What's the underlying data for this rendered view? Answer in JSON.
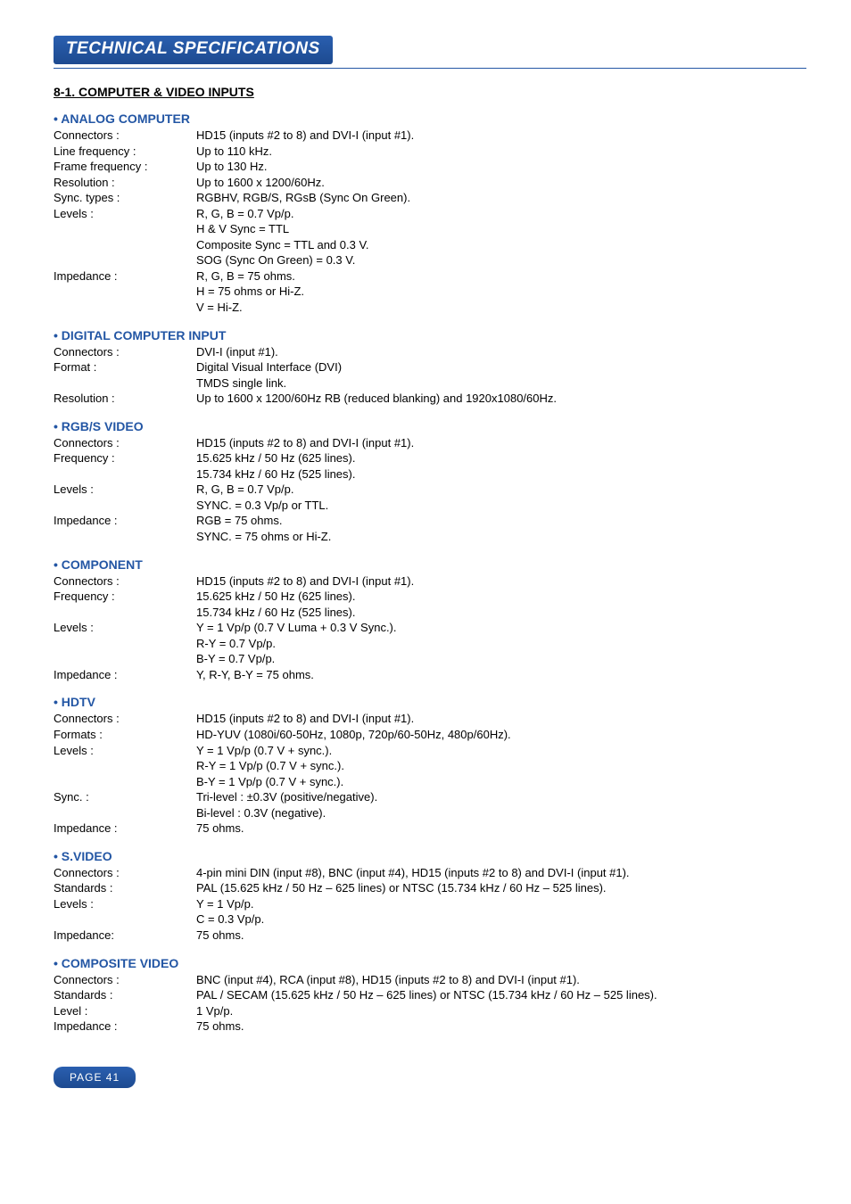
{
  "title": "TECHNICAL SPECIFICATIONS",
  "section_heading": "8-1. COMPUTER & VIDEO INPUTS",
  "page_label": "PAGE 41",
  "blocks": [
    {
      "heading": "• ANALOG COMPUTER",
      "rows": [
        {
          "label": "Connectors :",
          "value": "HD15 (inputs #2 to 8) and DVI-I (input #1)."
        },
        {
          "label": "Line frequency :",
          "value": "Up to 110 kHz."
        },
        {
          "label": "Frame frequency :",
          "value": "Up to 130 Hz."
        },
        {
          "label": "Resolution :",
          "value": "Up to 1600 x 1200/60Hz."
        },
        {
          "label": "Sync. types :",
          "value": "RGBHV, RGB/S, RGsB (Sync On Green)."
        },
        {
          "label": "Levels :",
          "value": "R, G, B = 0.7 Vp/p."
        },
        {
          "label": "",
          "value": "H & V Sync = TTL"
        },
        {
          "label": "",
          "value": "Composite Sync = TTL and 0.3 V."
        },
        {
          "label": "",
          "value": "SOG (Sync On Green) = 0.3 V."
        },
        {
          "label": "Impedance :",
          "value": "R, G, B = 75 ohms."
        },
        {
          "label": "",
          "value": "H = 75 ohms or Hi-Z."
        },
        {
          "label": "",
          "value": "V = Hi-Z."
        }
      ]
    },
    {
      "heading": "• DIGITAL COMPUTER INPUT",
      "rows": [
        {
          "label": "Connectors :",
          "value": "DVI-I (input #1)."
        },
        {
          "label": "Format :",
          "value": "Digital Visual Interface (DVI)"
        },
        {
          "label": "",
          "value": "TMDS single link."
        },
        {
          "label": "Resolution :",
          "value": "Up to 1600 x 1200/60Hz RB (reduced blanking) and 1920x1080/60Hz."
        }
      ]
    },
    {
      "heading": "• RGB/S VIDEO",
      "rows": [
        {
          "label": "Connectors :",
          "value": "HD15 (inputs #2 to 8) and DVI-I (input #1)."
        },
        {
          "label": "Frequency :",
          "value": "15.625 kHz / 50 Hz (625 lines)."
        },
        {
          "label": "",
          "value": "15.734 kHz / 60 Hz (525 lines)."
        },
        {
          "label": "Levels :",
          "value": "R, G, B = 0.7 Vp/p."
        },
        {
          "label": "",
          "value": "SYNC. = 0.3 Vp/p or TTL."
        },
        {
          "label": "Impedance :",
          "value": "RGB = 75 ohms."
        },
        {
          "label": "",
          "value": "SYNC. = 75 ohms or Hi-Z."
        }
      ]
    },
    {
      "heading": "• COMPONENT",
      "rows": [
        {
          "label": "Connectors :",
          "value": "HD15 (inputs #2 to 8) and DVI-I (input #1)."
        },
        {
          "label": "Frequency :",
          "value": "15.625 kHz / 50 Hz (625 lines)."
        },
        {
          "label": "",
          "value": "15.734 kHz / 60 Hz (525 lines)."
        },
        {
          "label": "Levels :",
          "value": "Y = 1 Vp/p (0.7 V Luma + 0.3 V Sync.)."
        },
        {
          "label": "",
          "value": "R-Y = 0.7 Vp/p."
        },
        {
          "label": "",
          "value": "B-Y = 0.7 Vp/p."
        },
        {
          "label": "Impedance :",
          "value": "Y, R-Y, B-Y = 75 ohms."
        }
      ]
    },
    {
      "heading": "• HDTV",
      "rows": [
        {
          "label": "Connectors :",
          "value": "HD15 (inputs #2 to 8) and DVI-I (input #1)."
        },
        {
          "label": "Formats :",
          "value": "HD-YUV (1080i/60-50Hz, 1080p, 720p/60-50Hz, 480p/60Hz)."
        },
        {
          "label": "Levels :",
          "value": "Y = 1 Vp/p (0.7 V + sync.)."
        },
        {
          "label": "",
          "value": "R-Y = 1 Vp/p (0.7 V + sync.)."
        },
        {
          "label": "",
          "value": "B-Y = 1 Vp/p (0.7 V + sync.)."
        },
        {
          "label": "Sync. :",
          "value": "Tri-level : ±0.3V (positive/negative)."
        },
        {
          "label": "",
          "value": "Bi-level : 0.3V (negative)."
        },
        {
          "label": "Impedance :",
          "value": "75 ohms."
        }
      ]
    },
    {
      "heading": "• S.VIDEO",
      "rows": [
        {
          "label": "Connectors :",
          "value": "4-pin mini DIN (input #8), BNC (input #4), HD15 (inputs #2 to 8) and DVI-I (input #1)."
        },
        {
          "label": "Standards :",
          "value": "PAL (15.625 kHz / 50 Hz – 625 lines) or NTSC (15.734 kHz / 60 Hz – 525 lines)."
        },
        {
          "label": "Levels :",
          "value": "Y = 1 Vp/p."
        },
        {
          "label": "",
          "value": "C = 0.3 Vp/p."
        },
        {
          "label": "Impedance:",
          "value": "75 ohms."
        }
      ]
    },
    {
      "heading": "• COMPOSITE VIDEO",
      "rows": [
        {
          "label": "Connectors :",
          "value": "BNC (input #4), RCA (input #8), HD15 (inputs #2 to 8) and DVI-I (input #1)."
        },
        {
          "label": "Standards :",
          "value": "PAL / SECAM (15.625 kHz / 50 Hz – 625 lines) or NTSC (15.734 kHz / 60 Hz – 525 lines)."
        },
        {
          "label": "Level :",
          "value": "1 Vp/p."
        },
        {
          "label": "Impedance :",
          "value": "75 ohms."
        }
      ]
    }
  ]
}
